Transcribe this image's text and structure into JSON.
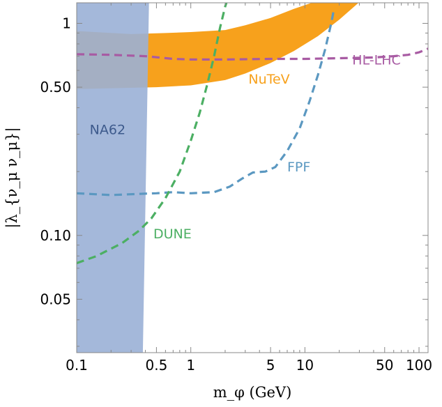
{
  "chart_data": {
    "type": "line",
    "xlabel": "m_φ (GeV)",
    "ylabel": "|λ_{ν_μ ν_μ}|",
    "x_scale": "log",
    "y_scale": "log",
    "xlim": [
      0.1,
      120
    ],
    "ylim": [
      0.028,
      1.25
    ],
    "grid": false,
    "legend": "none",
    "x_ticks": [
      {
        "value": 0.1,
        "label": "0.1"
      },
      {
        "value": 0.5,
        "label": "0.5"
      },
      {
        "value": 1,
        "label": "1"
      },
      {
        "value": 5,
        "label": "5"
      },
      {
        "value": 10,
        "label": "10"
      },
      {
        "value": 50,
        "label": "50"
      },
      {
        "value": 100,
        "label": "100"
      }
    ],
    "y_ticks": [
      {
        "value": 0.05,
        "label": "0.05"
      },
      {
        "value": 0.1,
        "label": "0.10"
      },
      {
        "value": 0.5,
        "label": "0.50"
      },
      {
        "value": 1,
        "label": "1"
      }
    ],
    "regions": [
      {
        "name": "NuTeV",
        "color": "#f7a11c",
        "label_at": [
          3.2,
          0.52
        ],
        "upper": [
          [
            0.1,
            0.92
          ],
          [
            0.3,
            0.89
          ],
          [
            0.6,
            0.9
          ],
          [
            1,
            0.91
          ],
          [
            2,
            0.93
          ],
          [
            3,
            0.98
          ],
          [
            5,
            1.06
          ],
          [
            8,
            1.17
          ],
          [
            12,
            1.26
          ]
        ],
        "lower": [
          [
            0.1,
            0.49
          ],
          [
            0.5,
            0.5
          ],
          [
            1,
            0.51
          ],
          [
            2,
            0.54
          ],
          [
            3,
            0.58
          ],
          [
            5,
            0.65
          ],
          [
            8,
            0.74
          ],
          [
            13,
            0.87
          ],
          [
            20,
            1.04
          ],
          [
            30,
            1.26
          ]
        ]
      },
      {
        "name": "NA62",
        "color": "#9ab0d6",
        "label_at": [
          0.13,
          0.3
        ],
        "x_min": 0.1,
        "upper_boundary": [
          [
            0.43,
            1.25
          ],
          [
            0.38,
            0.028
          ]
        ]
      }
    ],
    "series": [
      {
        "name": "HL-LHC",
        "color": "#a85ba3",
        "label_at": [
          26,
          0.64
        ],
        "x": [
          0.1,
          0.2,
          0.4,
          0.7,
          1,
          2,
          5,
          10,
          20,
          40,
          60,
          80,
          100,
          120
        ],
        "y": [
          0.715,
          0.71,
          0.7,
          0.68,
          0.675,
          0.675,
          0.68,
          0.68,
          0.685,
          0.69,
          0.7,
          0.71,
          0.73,
          0.76
        ]
      },
      {
        "name": "FPF",
        "color": "#5b98c1",
        "label_at": [
          7,
          0.2
        ],
        "x": [
          0.1,
          0.2,
          0.35,
          0.5,
          0.7,
          1,
          1.6,
          2.2,
          2.8,
          3.5,
          4.5,
          5.5,
          7,
          9,
          11,
          13,
          15,
          17,
          18
        ],
        "y": [
          0.158,
          0.155,
          0.157,
          0.158,
          0.16,
          0.158,
          0.16,
          0.17,
          0.185,
          0.198,
          0.2,
          0.21,
          0.25,
          0.32,
          0.43,
          0.57,
          0.75,
          1.0,
          1.17
        ]
      },
      {
        "name": "DUNE",
        "color": "#4caf63",
        "label_at": [
          0.47,
          0.097
        ],
        "x": [
          0.1,
          0.15,
          0.25,
          0.35,
          0.45,
          0.6,
          0.8,
          1.0,
          1.2,
          1.4,
          1.6,
          1.8,
          2.0,
          2.1
        ],
        "y": [
          0.074,
          0.08,
          0.092,
          0.105,
          0.12,
          0.15,
          0.2,
          0.28,
          0.38,
          0.52,
          0.7,
          0.95,
          1.2,
          1.3
        ]
      }
    ]
  }
}
